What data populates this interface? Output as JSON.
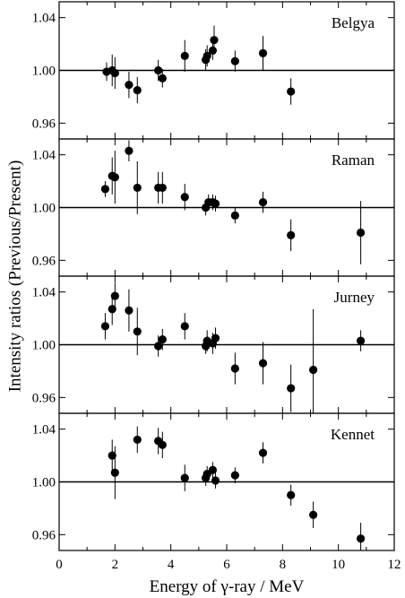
{
  "chart_data": {
    "type": "scatter",
    "xlabel": "Energy of γ-ray / MeV",
    "ylabel": "Intensity ratios  (Previous/Present)",
    "x_ticks": [
      0,
      2,
      4,
      6,
      8,
      10,
      12
    ],
    "xlim": [
      0,
      12
    ],
    "y_ticks": [
      0.96,
      1.0,
      1.04
    ],
    "y_tick_labels": [
      "0.96",
      "1.00",
      "1.04"
    ],
    "ylim": [
      0.948,
      1.052
    ],
    "reference_line": 1.0,
    "panels": [
      {
        "name": "Belgya",
        "points": [
          {
            "x": 1.7,
            "y": 0.999,
            "err": 0.007
          },
          {
            "x": 1.9,
            "y": 1.0,
            "err": 0.012
          },
          {
            "x": 2.0,
            "y": 0.998,
            "err": 0.012
          },
          {
            "x": 2.5,
            "y": 0.989,
            "err": 0.01
          },
          {
            "x": 2.8,
            "y": 0.985,
            "err": 0.01
          },
          {
            "x": 3.55,
            "y": 1.0,
            "err": 0.008
          },
          {
            "x": 3.7,
            "y": 0.994,
            "err": 0.007
          },
          {
            "x": 4.5,
            "y": 1.011,
            "err": 0.012
          },
          {
            "x": 5.25,
            "y": 1.008,
            "err": 0.008
          },
          {
            "x": 5.3,
            "y": 1.011,
            "err": 0.008
          },
          {
            "x": 5.5,
            "y": 1.015,
            "err": 0.007
          },
          {
            "x": 5.55,
            "y": 1.023,
            "err": 0.011
          },
          {
            "x": 6.3,
            "y": 1.007,
            "err": 0.008
          },
          {
            "x": 7.3,
            "y": 1.013,
            "err": 0.013
          },
          {
            "x": 8.3,
            "y": 0.984,
            "err": 0.01
          }
        ]
      },
      {
        "name": "Raman",
        "points": [
          {
            "x": 1.65,
            "y": 1.014,
            "err": 0.006
          },
          {
            "x": 1.9,
            "y": 1.024,
            "err": 0.014
          },
          {
            "x": 2.0,
            "y": 1.023,
            "err": 0.02
          },
          {
            "x": 2.5,
            "y": 1.043,
            "err": 0.008
          },
          {
            "x": 2.8,
            "y": 1.015,
            "err": 0.02
          },
          {
            "x": 3.55,
            "y": 1.015,
            "err": 0.012
          },
          {
            "x": 3.7,
            "y": 1.015,
            "err": 0.012
          },
          {
            "x": 4.5,
            "y": 1.008,
            "err": 0.01
          },
          {
            "x": 5.25,
            "y": 1.0,
            "err": 0.006
          },
          {
            "x": 5.35,
            "y": 1.004,
            "err": 0.006
          },
          {
            "x": 5.5,
            "y": 1.004,
            "err": 0.006
          },
          {
            "x": 5.6,
            "y": 1.003,
            "err": 0.006
          },
          {
            "x": 6.3,
            "y": 0.994,
            "err": 0.006
          },
          {
            "x": 7.3,
            "y": 1.004,
            "err": 0.008
          },
          {
            "x": 8.3,
            "y": 0.979,
            "err": 0.012
          },
          {
            "x": 10.8,
            "y": 0.981,
            "err": 0.024
          }
        ]
      },
      {
        "name": "Jurney",
        "points": [
          {
            "x": 1.65,
            "y": 1.014,
            "err": 0.01
          },
          {
            "x": 1.9,
            "y": 1.027,
            "err": 0.012
          },
          {
            "x": 2.0,
            "y": 1.037,
            "err": 0.01
          },
          {
            "x": 2.5,
            "y": 1.026,
            "err": 0.016
          },
          {
            "x": 2.8,
            "y": 1.01,
            "err": 0.018
          },
          {
            "x": 3.55,
            "y": 0.999,
            "err": 0.008
          },
          {
            "x": 3.7,
            "y": 1.004,
            "err": 0.008
          },
          {
            "x": 4.5,
            "y": 1.014,
            "err": 0.01
          },
          {
            "x": 5.25,
            "y": 0.999,
            "err": 0.006
          },
          {
            "x": 5.3,
            "y": 1.003,
            "err": 0.008
          },
          {
            "x": 5.5,
            "y": 1.001,
            "err": 0.008
          },
          {
            "x": 5.6,
            "y": 1.005,
            "err": 0.008
          },
          {
            "x": 6.3,
            "y": 0.982,
            "err": 0.012
          },
          {
            "x": 7.3,
            "y": 0.986,
            "err": 0.016
          },
          {
            "x": 8.3,
            "y": 0.967,
            "err": 0.018
          },
          {
            "x": 9.1,
            "y": 0.981,
            "err": 0.046
          },
          {
            "x": 10.8,
            "y": 1.003,
            "err": 0.008
          }
        ]
      },
      {
        "name": "Kennet",
        "points": [
          {
            "x": 1.9,
            "y": 1.02,
            "err": 0.012
          },
          {
            "x": 2.0,
            "y": 1.007,
            "err": 0.02
          },
          {
            "x": 2.8,
            "y": 1.032,
            "err": 0.01
          },
          {
            "x": 3.55,
            "y": 1.031,
            "err": 0.01
          },
          {
            "x": 3.7,
            "y": 1.028,
            "err": 0.01
          },
          {
            "x": 4.5,
            "y": 1.003,
            "err": 0.01
          },
          {
            "x": 5.25,
            "y": 1.003,
            "err": 0.006
          },
          {
            "x": 5.3,
            "y": 1.006,
            "err": 0.006
          },
          {
            "x": 5.5,
            "y": 1.009,
            "err": 0.006
          },
          {
            "x": 5.6,
            "y": 1.001,
            "err": 0.006
          },
          {
            "x": 6.3,
            "y": 1.005,
            "err": 0.006
          },
          {
            "x": 7.3,
            "y": 1.022,
            "err": 0.008
          },
          {
            "x": 8.3,
            "y": 0.99,
            "err": 0.008
          },
          {
            "x": 9.1,
            "y": 0.975,
            "err": 0.01
          },
          {
            "x": 10.8,
            "y": 0.957,
            "err": 0.012
          }
        ]
      }
    ]
  }
}
